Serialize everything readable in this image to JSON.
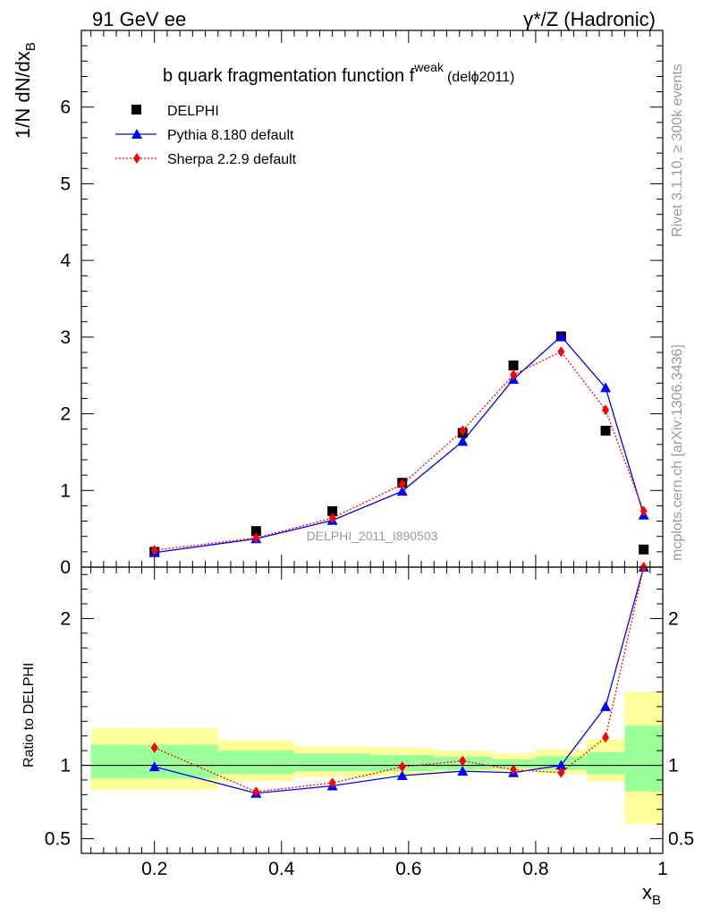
{
  "header": {
    "left_label": "91 GeV ee",
    "right_label": "γ*/Z (Hadronic)"
  },
  "side_labels": {
    "rivet": "Rivet 3.1.10, ≥ 300k events",
    "mcplots": "mcplots.cern.ch [arXiv:1306.3436]"
  },
  "watermark": "DELPHI_2011_I890503",
  "chart_data": [
    {
      "type": "scatter",
      "panel": "main",
      "title": "b quark fragmentation function f",
      "title_superscript": "weak",
      "title_suffix": "(delϕ2011)",
      "ylabel": "1/N dN/dx",
      "ylabel_subscript": "B",
      "xlim": [
        0.085,
        1.0
      ],
      "ylim": [
        0,
        7.0
      ],
      "yticks": [
        0,
        1,
        2,
        3,
        4,
        5,
        6
      ],
      "ytick_labels": [
        "0",
        "1",
        "2",
        "3",
        "4",
        "5",
        "6"
      ],
      "legend_position": "top-left",
      "series": [
        {
          "name": "DELPHI",
          "color": "#000000",
          "marker": "square",
          "line": "none",
          "x": [
            0.2,
            0.36,
            0.48,
            0.59,
            0.685,
            0.765,
            0.84,
            0.91,
            0.97
          ],
          "y": [
            0.2,
            0.47,
            0.73,
            1.1,
            1.75,
            2.63,
            3.01,
            1.78,
            0.23
          ]
        },
        {
          "name": "Pythia 8.180 default",
          "color": "#0000ff",
          "marker": "triangle",
          "line": "solid",
          "x": [
            0.2,
            0.36,
            0.48,
            0.59,
            0.685,
            0.765,
            0.84,
            0.91,
            0.97
          ],
          "y": [
            0.19,
            0.37,
            0.61,
            0.99,
            1.64,
            2.45,
            3.01,
            2.34,
            0.68
          ]
        },
        {
          "name": "Sherpa 2.2.9 default",
          "color": "#ff0000",
          "marker": "diamond",
          "line": "dotted",
          "x": [
            0.2,
            0.36,
            0.48,
            0.59,
            0.685,
            0.765,
            0.84,
            0.91,
            0.97
          ],
          "y": [
            0.22,
            0.38,
            0.64,
            1.08,
            1.78,
            2.51,
            2.81,
            2.05,
            0.73
          ]
        }
      ]
    },
    {
      "type": "line",
      "panel": "ratio",
      "ylabel": "Ratio to DELPHI",
      "xlabel": "x",
      "xlabel_subscript": "B",
      "xlim": [
        0.085,
        1.0
      ],
      "ylim": [
        0.4,
        2.35
      ],
      "yticks": [
        0.5,
        1,
        2
      ],
      "ytick_labels": [
        "0.5",
        "1",
        "2"
      ],
      "xticks": [
        0.2,
        0.4,
        0.6,
        0.8,
        1.0
      ],
      "xtick_labels": [
        "0.2",
        "0.4",
        "0.6",
        "0.8",
        "1"
      ],
      "reference_line": 1,
      "uncertainty_bands": {
        "bins": [
          [
            0.1,
            0.3
          ],
          [
            0.3,
            0.42
          ],
          [
            0.42,
            0.54
          ],
          [
            0.54,
            0.64
          ],
          [
            0.64,
            0.73
          ],
          [
            0.73,
            0.8
          ],
          [
            0.8,
            0.88
          ],
          [
            0.88,
            0.94
          ],
          [
            0.94,
            1.0
          ]
        ],
        "yellow": [
          [
            0.83,
            1.25
          ],
          [
            0.89,
            1.17
          ],
          [
            0.92,
            1.13
          ],
          [
            0.93,
            1.12
          ],
          [
            0.95,
            1.1
          ],
          [
            0.96,
            1.08
          ],
          [
            0.94,
            1.11
          ],
          [
            0.89,
            1.18
          ],
          [
            0.6,
            1.5
          ]
        ],
        "green": [
          [
            0.91,
            1.14
          ],
          [
            0.94,
            1.1
          ],
          [
            0.96,
            1.08
          ],
          [
            0.96,
            1.07
          ],
          [
            0.97,
            1.06
          ],
          [
            0.98,
            1.04
          ],
          [
            0.97,
            1.06
          ],
          [
            0.94,
            1.09
          ],
          [
            0.82,
            1.27
          ]
        ],
        "yellow_color": "#ffff99",
        "green_color": "#99ff99"
      },
      "series": [
        {
          "name": "Pythia 8.180 default",
          "color": "#0000ff",
          "marker": "triangle",
          "line": "solid",
          "x": [
            0.2,
            0.36,
            0.48,
            0.59,
            0.685,
            0.765,
            0.84,
            0.91,
            0.97
          ],
          "y": [
            0.99,
            0.81,
            0.86,
            0.93,
            0.96,
            0.95,
            1.0,
            1.4,
            2.35
          ]
        },
        {
          "name": "Sherpa 2.2.9 default",
          "color": "#ff0000",
          "marker": "diamond",
          "line": "dotted",
          "x": [
            0.2,
            0.36,
            0.48,
            0.59,
            0.685,
            0.765,
            0.84,
            0.91,
            0.97
          ],
          "y": [
            1.12,
            0.82,
            0.88,
            0.99,
            1.03,
            0.97,
            0.95,
            1.19,
            2.35
          ]
        }
      ]
    }
  ]
}
